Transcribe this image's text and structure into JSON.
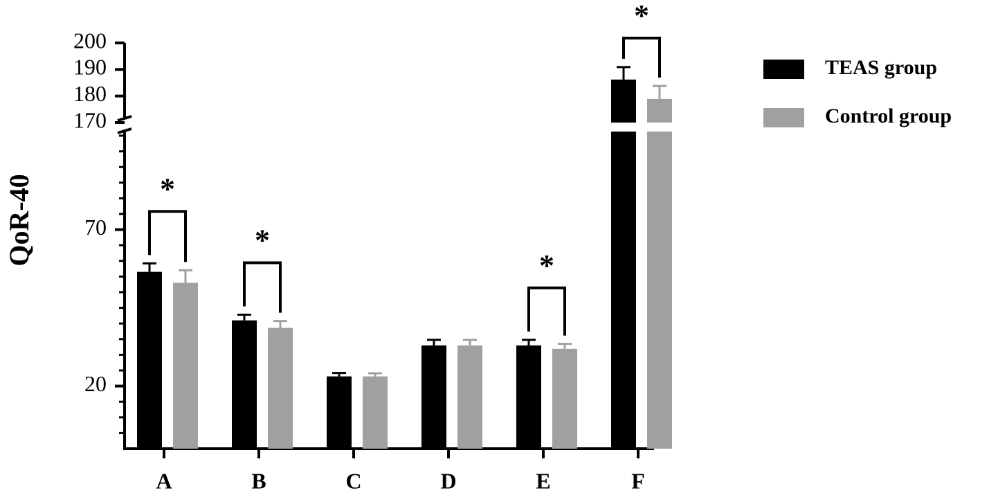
{
  "chart_data": {
    "type": "bar",
    "y_label": "QoR-40",
    "categories": [
      "A",
      "B",
      "C",
      "D",
      "E",
      "F"
    ],
    "series": [
      {
        "name": "TEAS group",
        "color": "#000000",
        "values": [
          56.5,
          41,
          23.1,
          33,
          33,
          186.2
        ],
        "errors": [
          2.7,
          1.8,
          1.1,
          1.8,
          1.8,
          4.7
        ]
      },
      {
        "name": "Control group",
        "color": "#a0a0a1",
        "values": [
          53,
          38.6,
          23.1,
          33,
          31.9,
          178.9
        ],
        "errors": [
          4,
          2.2,
          1,
          1.8,
          1.6,
          4.9
        ]
      }
    ],
    "ylim": [
      0,
      200
    ],
    "ybreak": [
      100,
      170
    ],
    "yticks": [
      20,
      70,
      170,
      180,
      190,
      200
    ],
    "yminorticks": [
      5,
      10,
      15,
      25,
      30,
      35,
      40,
      45,
      50,
      55,
      60,
      65,
      75,
      80,
      85,
      90,
      95,
      100
    ],
    "significant": [
      true,
      true,
      false,
      false,
      true,
      true
    ],
    "significance_label": "*",
    "legend": "right"
  }
}
